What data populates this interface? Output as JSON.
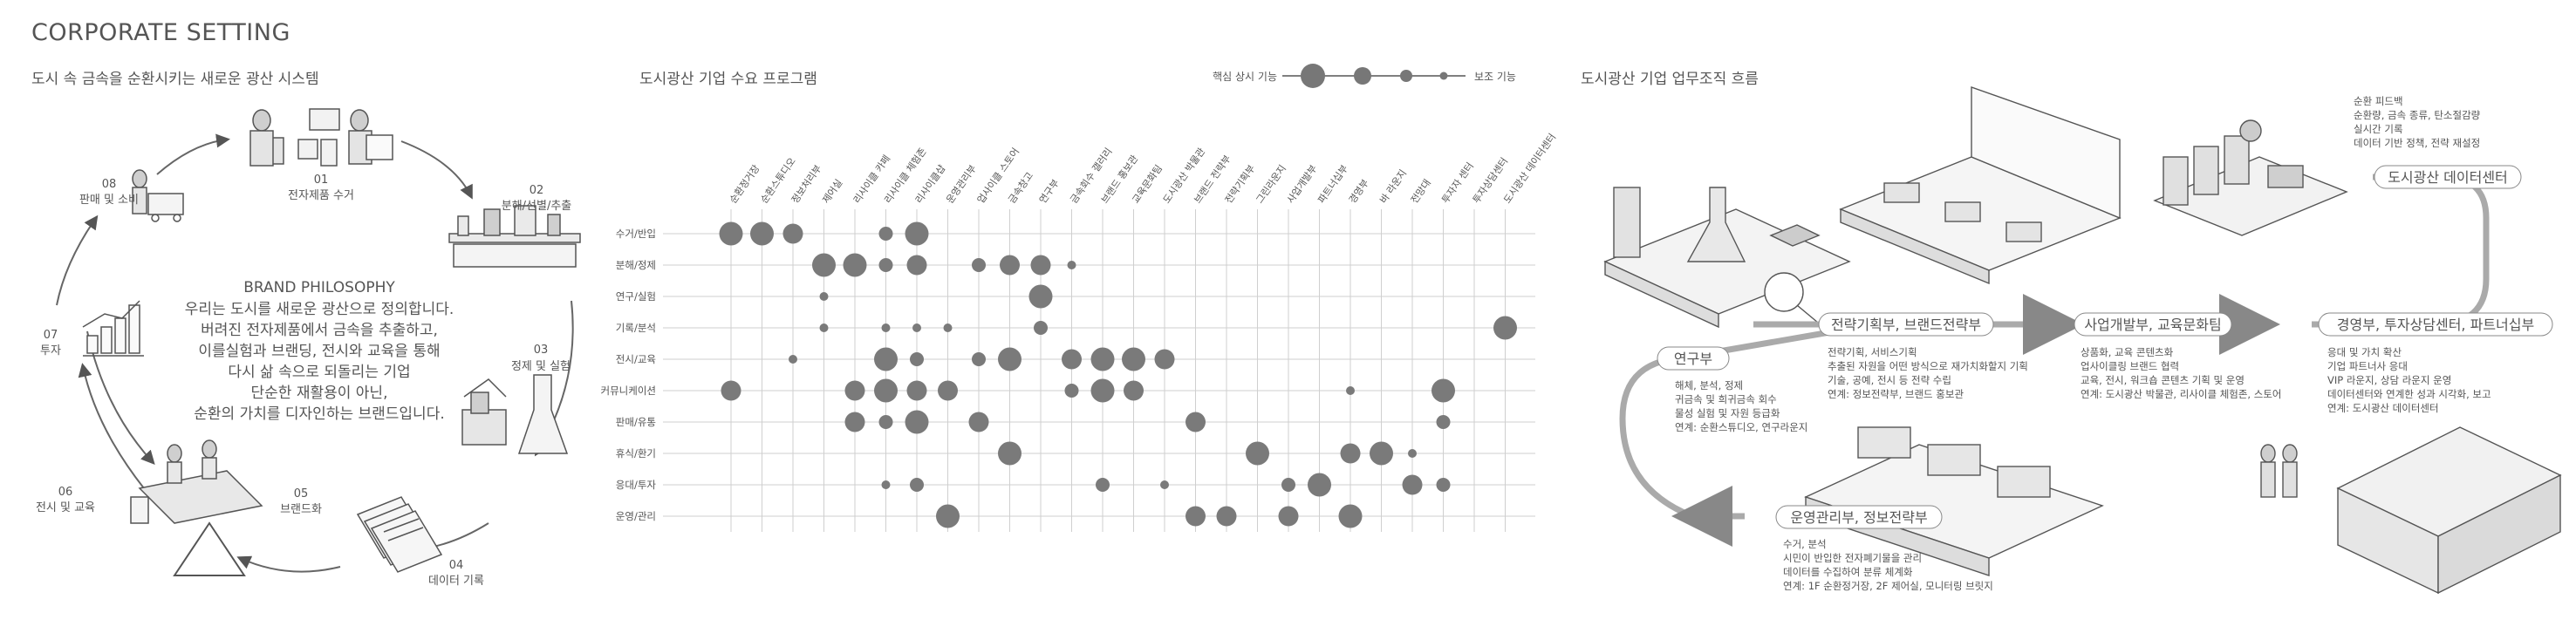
{
  "page_title": "CORPORATE SETTING",
  "sections": {
    "cycle_title": "도시 속 금속을 순환시키는 새로운 광산 시스템",
    "matrix_title": "도시광산 기업 수요 프로그램",
    "flow_title": "도시광산 기업 업무조직 흐름"
  },
  "cycle": {
    "steps": [
      {
        "num": "01",
        "label": "전자제품 수거"
      },
      {
        "num": "02",
        "label": "분해/선별/추출"
      },
      {
        "num": "03",
        "label": "정제 및 실험"
      },
      {
        "num": "04",
        "label": "데이터 기록"
      },
      {
        "num": "05",
        "label": "브랜드화"
      },
      {
        "num": "06",
        "label": "전시 및 교육"
      },
      {
        "num": "07",
        "label": "투자"
      },
      {
        "num": "08",
        "label": "판매 및 소비"
      }
    ],
    "philosophy_heading": "BRAND PHILOSOPHY",
    "philosophy_lines": [
      "우리는 도시를 새로운 광산으로 정의합니다.",
      "버려진 전자제품에서 금속을 추출하고,",
      "이를실험과 브랜딩, 전시와 교육을 통해",
      "다시 삶 속으로 되돌리는 기업",
      "단순한 재활용이 아닌,",
      "순환의 가치를 디자인하는 브랜드입니다."
    ]
  },
  "legend": {
    "left_label": "핵심 상시 기능",
    "right_label": "보조 기능"
  },
  "chart_data": {
    "type": "bubble-matrix",
    "columns": [
      "순환정거장",
      "순환스튜디오",
      "정보처리부",
      "제어실",
      "리사이클 카페",
      "리사이클 체험존",
      "리사이클샵",
      "운영관리부",
      "업사이클 스토어",
      "금속창고",
      "연구부",
      "금속회수 갤러리",
      "브랜드 홍보관",
      "교육문화팀",
      "도시광산 박물관",
      "브랜드 전략부",
      "전략기획부",
      "그린라운지",
      "사업개발부",
      "파트너십부",
      "경영부",
      "바 라운지",
      "전망대",
      "투자자 센터",
      "투자상담센터",
      "도시광산 데이터센터"
    ],
    "rows": [
      "수거/반입",
      "분해/정제",
      "연구/실험",
      "기록/분석",
      "전시/교육",
      "커뮤니케이션",
      "판매/유통",
      "휴식/환기",
      "응대/투자",
      "운영/관리"
    ],
    "size_levels": {
      "1": "small",
      "2": "medium",
      "3": "large",
      "4": "largest"
    },
    "cells": [
      [
        0,
        0,
        4
      ],
      [
        0,
        1,
        4
      ],
      [
        0,
        2,
        3
      ],
      [
        0,
        5,
        2
      ],
      [
        0,
        6,
        4
      ],
      [
        1,
        3,
        4
      ],
      [
        1,
        4,
        4
      ],
      [
        1,
        5,
        2
      ],
      [
        1,
        6,
        3
      ],
      [
        1,
        8,
        2
      ],
      [
        1,
        9,
        3
      ],
      [
        1,
        10,
        3
      ],
      [
        1,
        11,
        1
      ],
      [
        2,
        3,
        1
      ],
      [
        2,
        10,
        4
      ],
      [
        3,
        3,
        1
      ],
      [
        3,
        5,
        1
      ],
      [
        3,
        6,
        1
      ],
      [
        3,
        7,
        1
      ],
      [
        3,
        10,
        2
      ],
      [
        3,
        25,
        4
      ],
      [
        4,
        2,
        1
      ],
      [
        4,
        5,
        4
      ],
      [
        4,
        6,
        2
      ],
      [
        4,
        8,
        2
      ],
      [
        4,
        9,
        4
      ],
      [
        4,
        11,
        3
      ],
      [
        4,
        12,
        4
      ],
      [
        4,
        13,
        4
      ],
      [
        4,
        14,
        3
      ],
      [
        5,
        0,
        3
      ],
      [
        5,
        4,
        3
      ],
      [
        5,
        5,
        4
      ],
      [
        5,
        6,
        3
      ],
      [
        5,
        7,
        3
      ],
      [
        5,
        11,
        2
      ],
      [
        5,
        12,
        4
      ],
      [
        5,
        13,
        3
      ],
      [
        5,
        20,
        1
      ],
      [
        5,
        23,
        4
      ],
      [
        6,
        4,
        3
      ],
      [
        6,
        5,
        2
      ],
      [
        6,
        6,
        4
      ],
      [
        6,
        8,
        3
      ],
      [
        6,
        15,
        3
      ],
      [
        6,
        23,
        2
      ],
      [
        7,
        9,
        4
      ],
      [
        7,
        17,
        4
      ],
      [
        7,
        20,
        3
      ],
      [
        7,
        21,
        4
      ],
      [
        7,
        22,
        1
      ],
      [
        8,
        5,
        1
      ],
      [
        8,
        6,
        2
      ],
      [
        8,
        12,
        2
      ],
      [
        8,
        14,
        1
      ],
      [
        8,
        18,
        2
      ],
      [
        8,
        19,
        4
      ],
      [
        8,
        22,
        3
      ],
      [
        8,
        23,
        2
      ],
      [
        9,
        7,
        4
      ],
      [
        9,
        15,
        3
      ],
      [
        9,
        16,
        3
      ],
      [
        9,
        18,
        3
      ],
      [
        9,
        20,
        4
      ]
    ]
  },
  "flow": {
    "research": {
      "label": "연구부",
      "lines": [
        "해체, 분석, 정제",
        "귀금속 및 희귀금속 회수",
        "물성 실험 및 자원 등급화",
        "연계: 순환스튜디오, 연구라운지"
      ]
    },
    "strategy": {
      "label": "전략기획부, 브랜드전략부",
      "lines": [
        "전략기획, 서비스기획",
        "추출된 자원을 어떤 방식으로 재가치화할지 기획",
        "기술, 공예, 전시 등 전략 수립",
        "연계: 정보전략부, 브랜드 홍보관"
      ]
    },
    "business": {
      "label": "사업개발부, 교육문화팀",
      "lines": [
        "상품화, 교육 콘텐츠화",
        "업사이클링 브랜드 협력",
        "교육, 전시, 워크숍 콘텐츠 기획 및 운영",
        "연계: 도시광산 박물관, 리사이클 체험존, 스토어"
      ]
    },
    "management": {
      "label": "경영부, 투자상담센터, 파트너십부",
      "lines": [
        "응대 및 가치 확산",
        "기업 파트너사 응대",
        "VIP 라운지, 상담 라운지 운영",
        "데이터센터와 연계한 성과 시각화, 보고",
        "연계: 도시광산 데이터센터"
      ]
    },
    "datacenter": {
      "label": "도시광산 데이터센터",
      "lines": [
        "순환 피드백",
        "순환량, 금속 종류, 탄소절감량",
        "실시간 기록",
        "데이터 기반 정책, 전략 재설정"
      ]
    },
    "operation": {
      "label": "운영관리부, 정보전략부",
      "lines": [
        "수거, 분석",
        "시민이 반입한 전자폐기물을 관리",
        "데이터를 수집하여 분류 체계화",
        "연계: 1F 순환정거장, 2F 제어실, 모니터링 브릿지"
      ]
    }
  }
}
